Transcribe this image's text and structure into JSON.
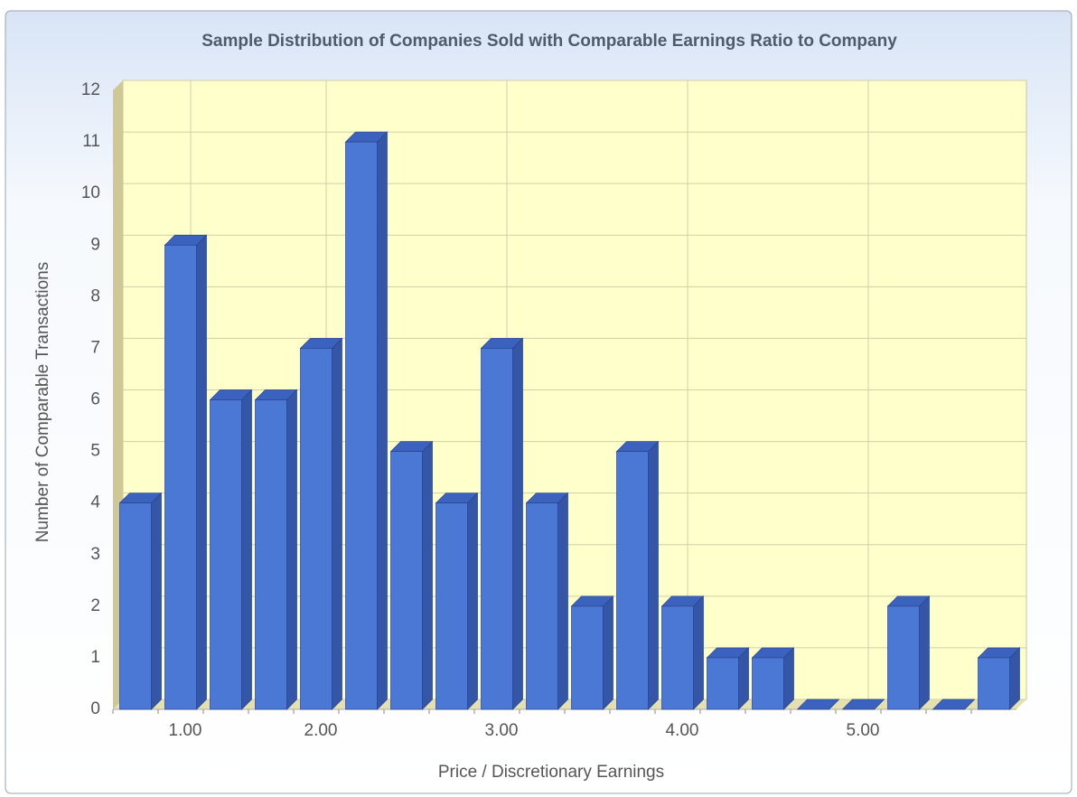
{
  "chart_data": {
    "type": "bar",
    "title": "Sample Distribution of Companies Sold with Comparable Earnings Ratio to Company",
    "x_label": "Price / Discretionary Earnings",
    "y_label": "Number of Comparable Transactions",
    "categories": [
      null,
      "1.00",
      null,
      null,
      "2.00",
      null,
      null,
      null,
      "3.00",
      null,
      null,
      null,
      "4.00",
      null,
      null,
      null,
      "5.00",
      null,
      null,
      null
    ],
    "values": [
      4,
      9,
      6,
      6,
      7,
      11,
      5,
      4,
      7,
      4,
      2,
      5,
      2,
      1,
      1,
      0,
      0,
      2,
      0,
      1
    ],
    "color": "#4a78d4",
    "ylim": [
      0,
      12
    ],
    "yticks": [
      0,
      1,
      2,
      3,
      4,
      5,
      6,
      7,
      8,
      9,
      10,
      11,
      12
    ],
    "grid": true
  }
}
